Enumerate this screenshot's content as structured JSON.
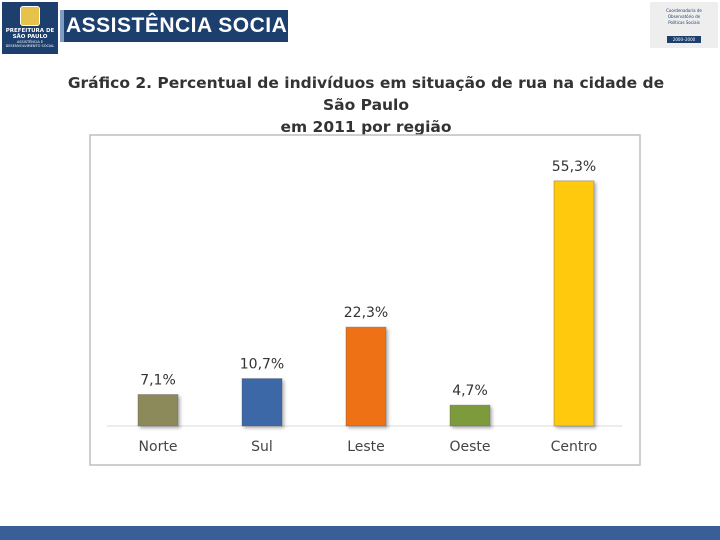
{
  "header": {
    "logo_lines": [
      "PREFEITURA DE",
      "SÃO PAULO",
      "ASSISTÊNCIA E",
      "DESENVOLVIMENTO SOCIAL"
    ],
    "banner_title": "ASSISTÊNCIA SOCIAL",
    "corner_lines": [
      "Coordenadoria de",
      "Observatório de",
      "Políticas Sociais"
    ],
    "corner_tag": "2000–2000"
  },
  "colors": {
    "navy": "#1c3f6e",
    "bar_band": "#3a5f96",
    "bars": [
      "#8c8a5a",
      "#3d67a8",
      "#ef7117",
      "#7d9b3c",
      "#ffc90d"
    ]
  },
  "chart_data": {
    "type": "bar",
    "title": "Gráfico 2. Percentual de indivíduos em situação de rua na cidade de São Paulo em 2011 por região",
    "title_lines": [
      "Gráfico 2. Percentual de indivíduos em situação de rua na cidade de São Paulo",
      "em 2011 por região"
    ],
    "categories": [
      "Norte",
      "Sul",
      "Leste",
      "Oeste",
      "Centro"
    ],
    "values": [
      7.1,
      10.7,
      22.3,
      4.7,
      55.3
    ],
    "labels": [
      "7,1%",
      "10,7%",
      "22,3%",
      "4,7%",
      "55,3%"
    ],
    "xlabel": "",
    "ylabel": "",
    "ylim": [
      0,
      60
    ],
    "grid": false,
    "legend": "none"
  }
}
